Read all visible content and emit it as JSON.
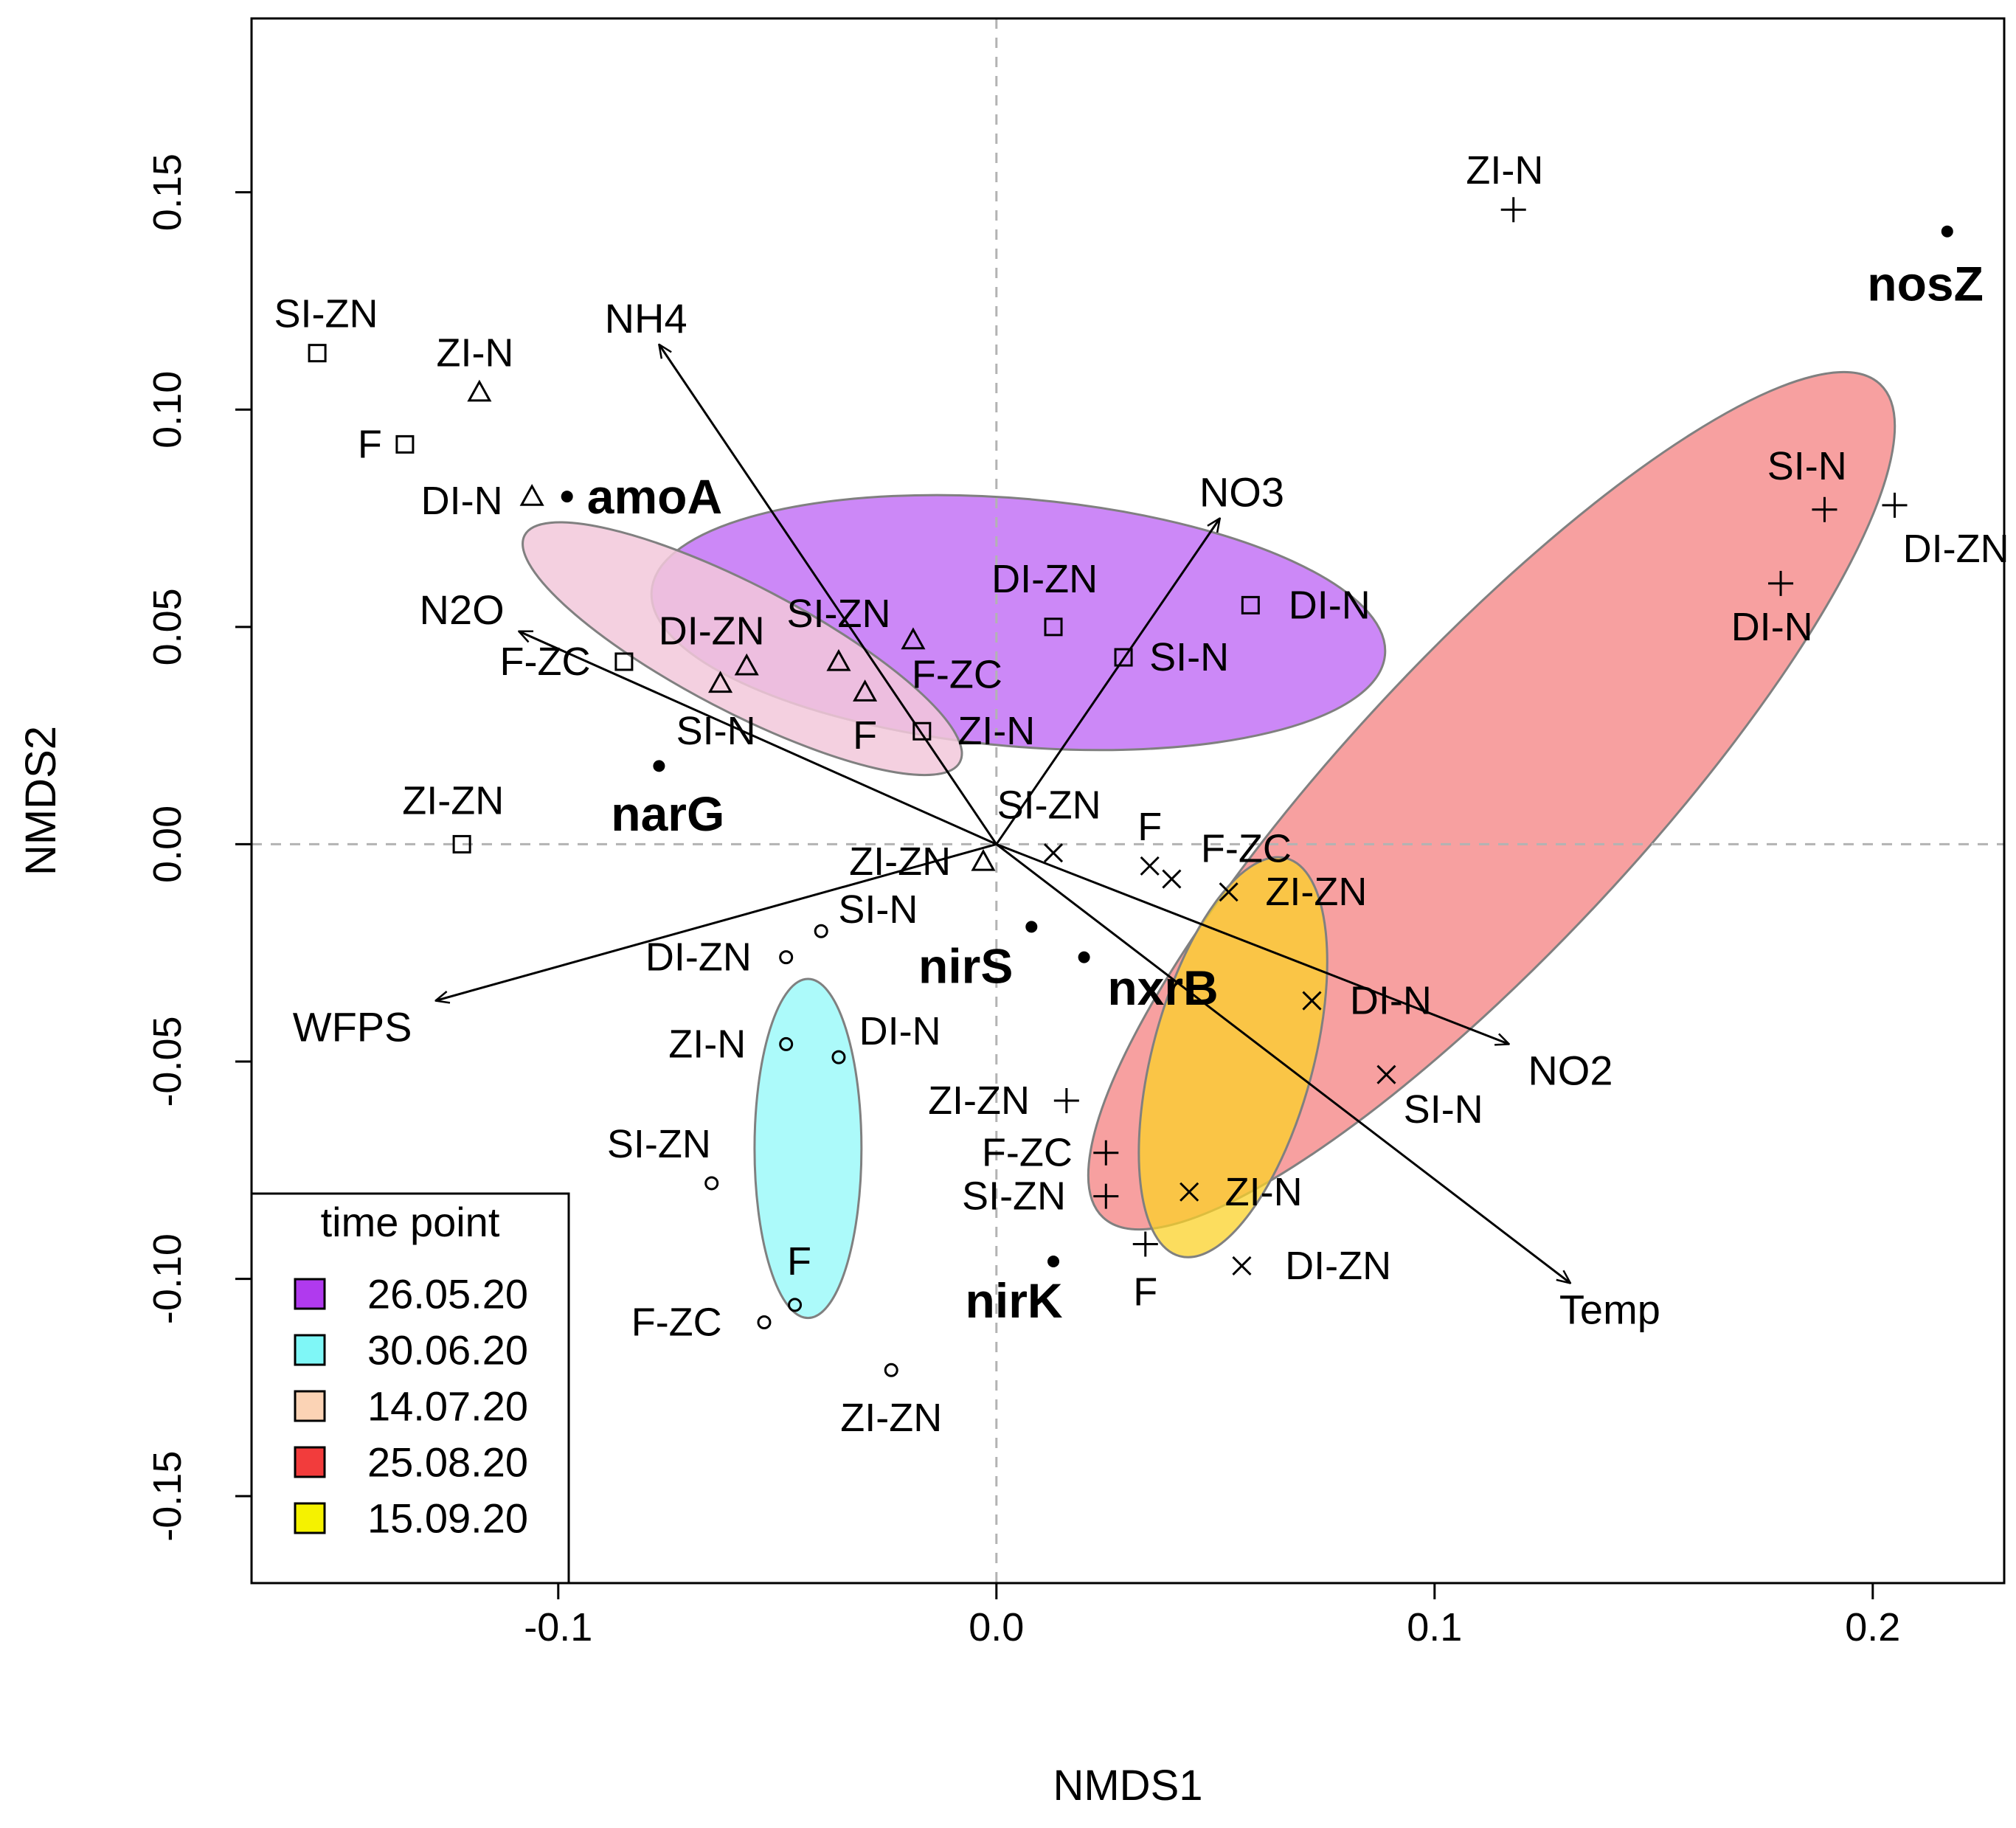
{
  "chart_data": {
    "type": "scatter",
    "title": "",
    "xlabel": "NMDS1",
    "ylabel": "NMDS2",
    "xlim": [
      -0.17,
      0.23
    ],
    "ylim": [
      -0.17,
      0.19
    ],
    "xticks": [
      {
        "v": -0.1,
        "label": "-0.1"
      },
      {
        "v": 0.0,
        "label": "0.0"
      },
      {
        "v": 0.1,
        "label": "0.1"
      },
      {
        "v": 0.2,
        "label": "0.2"
      }
    ],
    "yticks": [
      {
        "v": -0.15,
        "label": "-0.15"
      },
      {
        "v": -0.1,
        "label": "-0.10"
      },
      {
        "v": -0.05,
        "label": "-0.05"
      },
      {
        "v": 0.0,
        "label": "0.00"
      },
      {
        "v": 0.05,
        "label": "0.05"
      },
      {
        "v": 0.1,
        "label": "0.10"
      },
      {
        "v": 0.15,
        "label": "0.15"
      }
    ],
    "reference_lines": {
      "x": 0,
      "y": 0,
      "style": "dashed"
    },
    "legend": {
      "title": "time point",
      "position": "bottom-left",
      "items": [
        {
          "label": "26.05.20",
          "color": "#b03aee"
        },
        {
          "label": "30.06.20",
          "color": "#7ff7f7"
        },
        {
          "label": "14.07.20",
          "color": "#fbd3b5"
        },
        {
          "label": "25.08.20",
          "color": "#f23c3c"
        },
        {
          "label": "15.09.20",
          "color": "#f5f200"
        }
      ]
    },
    "ellipses": [
      {
        "name": "26.05.20",
        "cx": 0.005,
        "cy": 0.051,
        "rx": 0.084,
        "ry": 0.0285,
        "angle_deg": -5,
        "fill": "#c67bf6",
        "opacity": 0.9
      },
      {
        "name": "30.06.20",
        "cx": -0.043,
        "cy": -0.07,
        "rx": 0.0122,
        "ry": 0.039,
        "angle_deg": 0,
        "fill": "#a3f9f9",
        "opacity": 0.9
      },
      {
        "name": "14.07.20",
        "cx": -0.058,
        "cy": 0.045,
        "rx": 0.056,
        "ry": 0.0145,
        "angle_deg": -27.5,
        "fill": "#f2c8da",
        "opacity": 0.85
      },
      {
        "name": "25.08.20",
        "cx": 0.113,
        "cy": 0.01,
        "rx": 0.13,
        "ry": 0.034,
        "angle_deg": 47,
        "fill": "#f68f8f",
        "opacity": 0.85
      },
      {
        "name": "15.09.20",
        "cx": 0.054,
        "cy": -0.049,
        "rx": 0.047,
        "ry": 0.0185,
        "angle_deg": 75,
        "fill": "#fbd228",
        "opacity": 0.75
      }
    ],
    "series": [
      {
        "name": "26.05.20",
        "marker": "square",
        "points": [
          {
            "x": -0.155,
            "y": 0.113,
            "label": "SI-ZN",
            "lx": -0.153,
            "ly": 0.122
          },
          {
            "x": -0.135,
            "y": 0.092,
            "label": "F",
            "lx": -0.143,
            "ly": 0.092
          },
          {
            "x": -0.085,
            "y": 0.042,
            "label": "F-ZC",
            "lx": -0.103,
            "ly": 0.042
          },
          {
            "x": -0.122,
            "y": 0.0,
            "label": "ZI-ZN",
            "lx": -0.124,
            "ly": 0.01
          },
          {
            "x": 0.013,
            "y": 0.05,
            "label": "DI-ZN",
            "lx": 0.011,
            "ly": 0.061
          },
          {
            "x": 0.029,
            "y": 0.043,
            "label": "SI-N",
            "lx": 0.044,
            "ly": 0.043
          },
          {
            "x": 0.058,
            "y": 0.055,
            "label": "DI-N",
            "lx": 0.076,
            "ly": 0.055
          },
          {
            "x": -0.017,
            "y": 0.026,
            "label": "ZI-N",
            "lx": 0.0,
            "ly": 0.026
          }
        ]
      },
      {
        "name": "30.06.20",
        "marker": "circle",
        "points": [
          {
            "x": -0.048,
            "y": -0.046,
            "label": "ZI-N",
            "lx": -0.066,
            "ly": -0.046
          },
          {
            "x": -0.036,
            "y": -0.049,
            "label": "DI-N",
            "lx": -0.022,
            "ly": -0.043
          },
          {
            "x": -0.04,
            "y": -0.02,
            "label": "SI-N",
            "lx": -0.027,
            "ly": -0.015
          },
          {
            "x": -0.048,
            "y": -0.026,
            "label": "DI-ZN",
            "lx": -0.068,
            "ly": -0.026
          },
          {
            "x": -0.065,
            "y": -0.078,
            "label": "SI-ZN",
            "lx": -0.077,
            "ly": -0.069
          },
          {
            "x": -0.046,
            "y": -0.106,
            "label": "F",
            "lx": -0.045,
            "ly": -0.096
          },
          {
            "x": -0.053,
            "y": -0.11,
            "label": "F-ZC",
            "lx": -0.073,
            "ly": -0.11
          },
          {
            "x": -0.024,
            "y": -0.121,
            "label": "ZI-ZN",
            "lx": -0.024,
            "ly": -0.132
          }
        ]
      },
      {
        "name": "14.07.20",
        "marker": "triangle",
        "points": [
          {
            "x": -0.118,
            "y": 0.104,
            "label": "ZI-N",
            "lx": -0.119,
            "ly": 0.113
          },
          {
            "x": -0.106,
            "y": 0.08,
            "label": "DI-N",
            "lx": -0.122,
            "ly": 0.079
          },
          {
            "x": -0.057,
            "y": 0.041,
            "label": "DI-ZN",
            "lx": -0.065,
            "ly": 0.049
          },
          {
            "x": -0.063,
            "y": 0.037,
            "label": "SI-N",
            "lx": -0.064,
            "ly": 0.026
          },
          {
            "x": -0.036,
            "y": 0.042,
            "label": "SI-ZN",
            "lx": -0.036,
            "ly": 0.053
          },
          {
            "x": -0.019,
            "y": 0.047,
            "label": "F-ZC",
            "lx": -0.009,
            "ly": 0.039
          },
          {
            "x": -0.03,
            "y": 0.035,
            "label": "F",
            "lx": -0.03,
            "ly": 0.025
          },
          {
            "x": -0.003,
            "y": -0.004,
            "label": "ZI-ZN",
            "lx": -0.022,
            "ly": -0.004
          }
        ]
      },
      {
        "name": "25.08.20",
        "marker": "plus",
        "points": [
          {
            "x": 0.118,
            "y": 0.146,
            "label": "ZI-N",
            "lx": 0.116,
            "ly": 0.155
          },
          {
            "x": 0.189,
            "y": 0.077,
            "label": "SI-N",
            "lx": 0.185,
            "ly": 0.087
          },
          {
            "x": 0.205,
            "y": 0.078,
            "label": "DI-ZN",
            "lx": 0.219,
            "ly": 0.068
          },
          {
            "x": 0.179,
            "y": 0.06,
            "label": "DI-N",
            "lx": 0.177,
            "ly": 0.05
          },
          {
            "x": 0.016,
            "y": -0.059,
            "label": "ZI-ZN",
            "lx": -0.004,
            "ly": -0.059
          },
          {
            "x": 0.025,
            "y": -0.071,
            "label": "F-ZC",
            "lx": 0.007,
            "ly": -0.071
          },
          {
            "x": 0.025,
            "y": -0.081,
            "label": "SI-ZN",
            "lx": 0.004,
            "ly": -0.081
          },
          {
            "x": 0.034,
            "y": -0.092,
            "label": "F",
            "lx": 0.034,
            "ly": -0.103
          }
        ]
      },
      {
        "name": "15.09.20",
        "marker": "cross",
        "points": [
          {
            "x": 0.013,
            "y": -0.002,
            "label": "SI-ZN",
            "lx": 0.012,
            "ly": 0.009
          },
          {
            "x": 0.035,
            "y": -0.005,
            "label": "F",
            "lx": 0.035,
            "ly": 0.004
          },
          {
            "x": 0.04,
            "y": -0.008,
            "label": "F-ZC",
            "lx": 0.057,
            "ly": -0.001
          },
          {
            "x": 0.053,
            "y": -0.011,
            "label": "ZI-ZN",
            "lx": 0.073,
            "ly": -0.011
          },
          {
            "x": 0.072,
            "y": -0.036,
            "label": "DI-N",
            "lx": 0.09,
            "ly": -0.036
          },
          {
            "x": 0.089,
            "y": -0.053,
            "label": "SI-N",
            "lx": 0.102,
            "ly": -0.061
          },
          {
            "x": 0.044,
            "y": -0.08,
            "label": "ZI-N",
            "lx": 0.061,
            "ly": -0.08
          },
          {
            "x": 0.056,
            "y": -0.097,
            "label": "DI-ZN",
            "lx": 0.078,
            "ly": -0.097
          }
        ]
      }
    ],
    "genes": [
      {
        "name": "amoA",
        "x": -0.098,
        "y": 0.08,
        "lx": -0.078,
        "ly": 0.08
      },
      {
        "name": "narG",
        "x": -0.077,
        "y": 0.018,
        "lx": -0.075,
        "ly": 0.007
      },
      {
        "name": "nirS",
        "x": 0.008,
        "y": -0.019,
        "lx": -0.007,
        "ly": -0.028
      },
      {
        "name": "nxrB",
        "x": 0.02,
        "y": -0.026,
        "lx": 0.038,
        "ly": -0.033
      },
      {
        "name": "nirK",
        "x": 0.013,
        "y": -0.096,
        "lx": 0.004,
        "ly": -0.105
      },
      {
        "name": "nosZ",
        "x": 0.217,
        "y": 0.141,
        "lx": 0.212,
        "ly": 0.129
      }
    ],
    "env_vectors": [
      {
        "name": "NH4",
        "x": -0.077,
        "y": 0.115,
        "lx": -0.08,
        "ly": 0.121
      },
      {
        "name": "NO3",
        "x": 0.051,
        "y": 0.075,
        "lx": 0.056,
        "ly": 0.081
      },
      {
        "name": "N2O",
        "x": -0.109,
        "y": 0.049,
        "lx": -0.122,
        "ly": 0.054
      },
      {
        "name": "WFPS",
        "x": -0.128,
        "y": -0.036,
        "lx": -0.147,
        "ly": -0.042
      },
      {
        "name": "NO2",
        "x": 0.117,
        "y": -0.046,
        "lx": 0.131,
        "ly": -0.052
      },
      {
        "name": "Temp",
        "x": 0.131,
        "y": -0.101,
        "lx": 0.14,
        "ly": -0.107
      }
    ]
  }
}
